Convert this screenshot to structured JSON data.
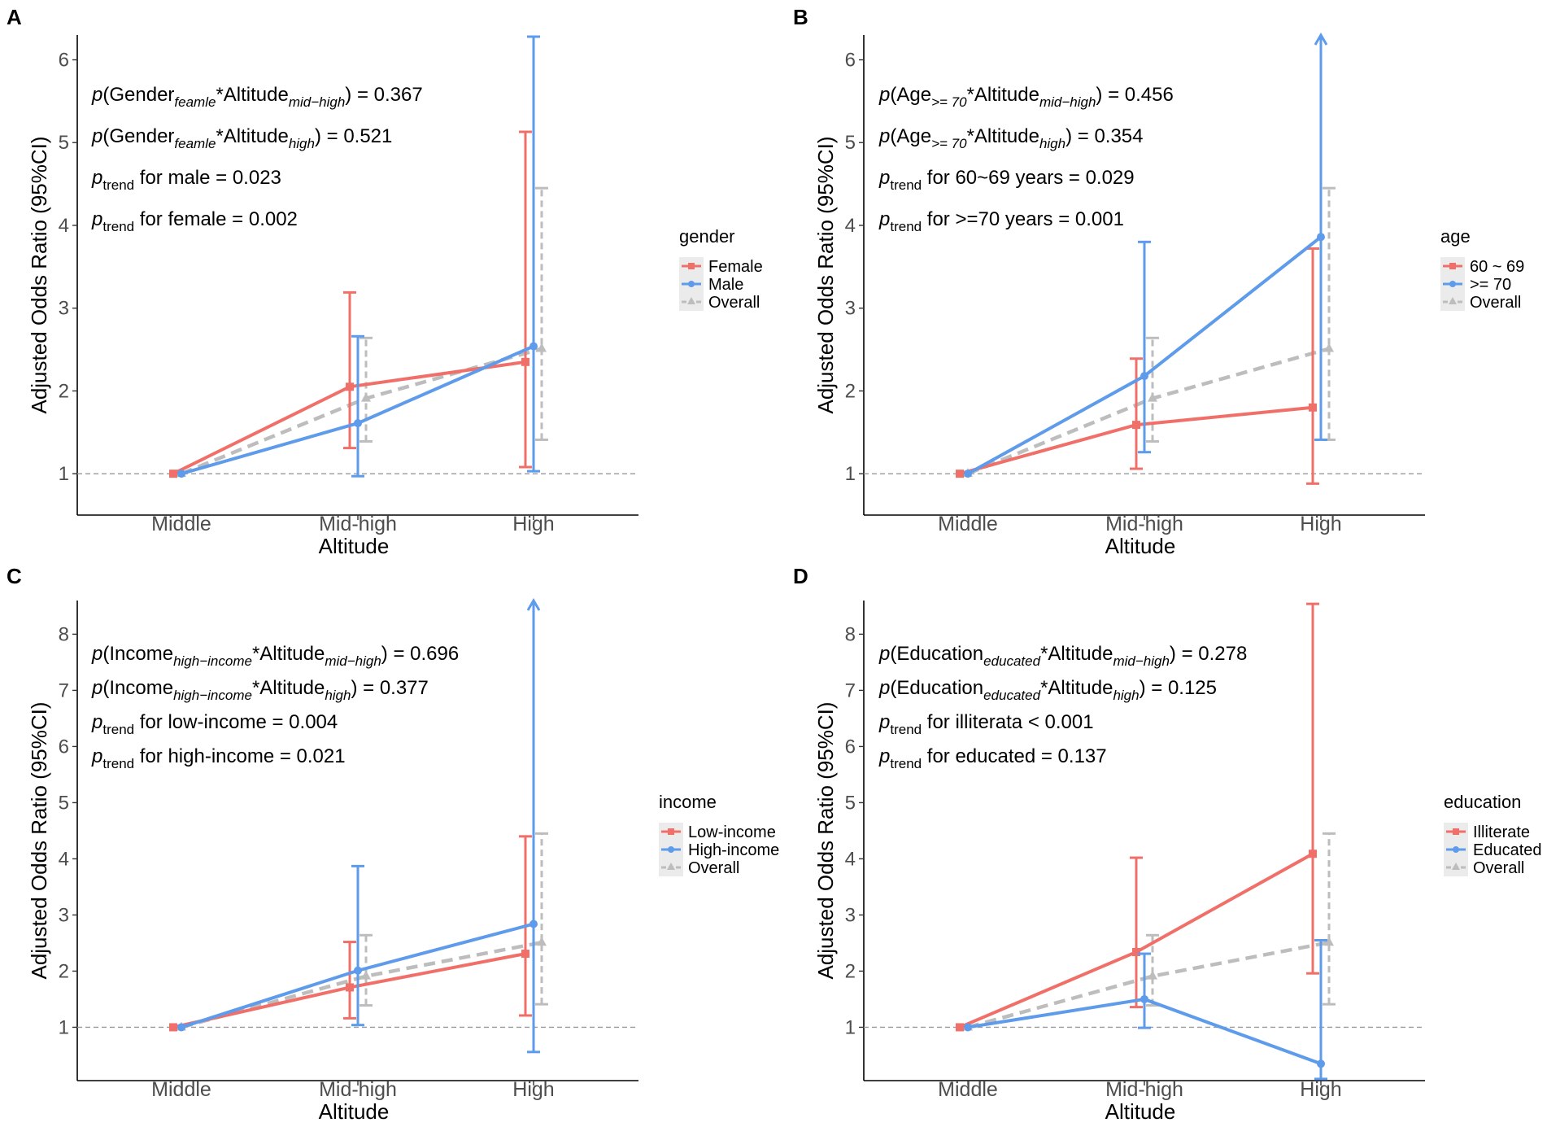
{
  "figure": {
    "shared": {
      "xlabel": "Altitude",
      "ylabel": "Adjusted Odds Ratio (95%CI)",
      "categories": [
        "Middle",
        "Mid-high",
        "High"
      ],
      "reference_line": 1,
      "colors": {
        "red": "#F07069",
        "blue": "#5E9BEB",
        "gray": "#BDBDBD",
        "ref": "#9a9a9a"
      }
    },
    "chart_data": [
      {
        "panel": "A",
        "type": "line",
        "ylim": [
          0.5,
          6.3
        ],
        "yticks": [
          1,
          2,
          3,
          4,
          5,
          6
        ],
        "legend_title": "gender",
        "series": [
          {
            "name": "Female",
            "color_key": "red",
            "marker": "square",
            "values": [
              1,
              2.05,
              2.35
            ],
            "lower": [
              null,
              1.31,
              1.08
            ],
            "upper": [
              null,
              3.19,
              5.13
            ],
            "arrow": [
              false,
              false,
              false
            ]
          },
          {
            "name": "Male",
            "color_key": "blue",
            "marker": "circle",
            "values": [
              1,
              1.61,
              2.54
            ],
            "lower": [
              null,
              0.97,
              1.03
            ],
            "upper": [
              null,
              2.66,
              6.28
            ],
            "arrow": [
              false,
              false,
              false
            ]
          },
          {
            "name": "Overall",
            "color_key": "gray",
            "marker": "triangle",
            "values": [
              1,
              1.91,
              2.51
            ],
            "lower": [
              null,
              1.39,
              1.41
            ],
            "upper": [
              null,
              2.64,
              4.45
            ],
            "arrow": [
              false,
              false,
              false
            ]
          }
        ],
        "annotations": [
          {
            "pre": "p",
            "a": "(Gender",
            "sub1": "feamle",
            "b": "*Altitude",
            "sub2": "mid−high",
            "c": ") = 0.367"
          },
          {
            "pre": "p",
            "a": "(Gender",
            "sub1": "feamle",
            "b": "*Altitude",
            "sub2": "high",
            "c": ") = 0.521"
          },
          {
            "pre": "p",
            "a": "",
            "sub1": "trend",
            "b": " for male = 0.023",
            "sub2": "",
            "c": ""
          },
          {
            "pre": "p",
            "a": "",
            "sub1": "trend",
            "b": " for female = 0.002",
            "sub2": "",
            "c": ""
          }
        ]
      },
      {
        "panel": "B",
        "type": "line",
        "ylim": [
          0.5,
          6.3
        ],
        "yticks": [
          1,
          2,
          3,
          4,
          5,
          6
        ],
        "legend_title": "age",
        "series": [
          {
            "name": "60 ~ 69",
            "color_key": "red",
            "marker": "square",
            "values": [
              1,
              1.59,
              1.8
            ],
            "lower": [
              null,
              1.06,
              0.88
            ],
            "upper": [
              null,
              2.39,
              3.72
            ],
            "arrow": [
              false,
              false,
              false
            ]
          },
          {
            "name": ">= 70",
            "color_key": "blue",
            "marker": "circle",
            "values": [
              1,
              2.18,
              3.86
            ],
            "lower": [
              null,
              1.26,
              1.41
            ],
            "upper": [
              null,
              3.8,
              6.3
            ],
            "arrow": [
              false,
              false,
              true
            ]
          },
          {
            "name": "Overall",
            "color_key": "gray",
            "marker": "triangle",
            "values": [
              1,
              1.91,
              2.51
            ],
            "lower": [
              null,
              1.39,
              1.41
            ],
            "upper": [
              null,
              2.64,
              4.45
            ],
            "arrow": [
              false,
              false,
              false
            ]
          }
        ],
        "annotations": [
          {
            "pre": "p",
            "a": "(Age",
            "sub1": ">= 70",
            "b": "*Altitude",
            "sub2": "mid−high",
            "c": ") = 0.456"
          },
          {
            "pre": "p",
            "a": "(Age",
            "sub1": ">= 70",
            "b": "*Altitude",
            "sub2": "high",
            "c": ") = 0.354"
          },
          {
            "pre": "p",
            "a": "",
            "sub1": "trend",
            "b": " for 60~69 years = 0.029",
            "sub2": "",
            "c": ""
          },
          {
            "pre": "p",
            "a": "",
            "sub1": "trend",
            "b": " for >=70 years = 0.001",
            "sub2": "",
            "c": ""
          }
        ]
      },
      {
        "panel": "C",
        "type": "line",
        "ylim": [
          0.05,
          8.6
        ],
        "yticks": [
          1,
          2,
          3,
          4,
          5,
          6,
          7,
          8
        ],
        "legend_title": "income",
        "series": [
          {
            "name": "Low-income",
            "color_key": "red",
            "marker": "square",
            "values": [
              1,
              1.71,
              2.31
            ],
            "lower": [
              null,
              1.16,
              1.21
            ],
            "upper": [
              null,
              2.52,
              4.4
            ],
            "arrow": [
              false,
              false,
              false
            ]
          },
          {
            "name": "High-income",
            "color_key": "blue",
            "marker": "circle",
            "values": [
              1,
              2.01,
              2.84
            ],
            "lower": [
              null,
              1.04,
              0.56
            ],
            "upper": [
              null,
              3.87,
              8.6
            ],
            "arrow": [
              false,
              false,
              true
            ]
          },
          {
            "name": "Overall",
            "color_key": "gray",
            "marker": "triangle",
            "values": [
              1,
              1.91,
              2.51
            ],
            "lower": [
              null,
              1.39,
              1.41
            ],
            "upper": [
              null,
              2.64,
              4.45
            ],
            "arrow": [
              false,
              false,
              false
            ]
          }
        ],
        "annotations": [
          {
            "pre": "p",
            "a": "(Income",
            "sub1": "high−income",
            "b": "*Altitude",
            "sub2": "mid−high",
            "c": ") = 0.696"
          },
          {
            "pre": "p",
            "a": "(Income",
            "sub1": "high−income",
            "b": "*Altitude",
            "sub2": "high",
            "c": ") = 0.377"
          },
          {
            "pre": "p",
            "a": "",
            "sub1": "trend",
            "b": " for low-income = 0.004",
            "sub2": "",
            "c": ""
          },
          {
            "pre": "p",
            "a": "",
            "sub1": "trend",
            "b": " for high-income = 0.021",
            "sub2": "",
            "c": ""
          }
        ]
      },
      {
        "panel": "D",
        "type": "line",
        "ylim": [
          0.05,
          8.6
        ],
        "yticks": [
          1,
          2,
          3,
          4,
          5,
          6,
          7,
          8
        ],
        "legend_title": "education",
        "series": [
          {
            "name": "Illiterate",
            "color_key": "red",
            "marker": "square",
            "values": [
              1,
              2.34,
              4.09
            ],
            "lower": [
              null,
              1.36,
              1.96
            ],
            "upper": [
              null,
              4.02,
              8.54
            ],
            "arrow": [
              false,
              false,
              false
            ]
          },
          {
            "name": "Educated",
            "color_key": "blue",
            "marker": "circle",
            "values": [
              1,
              1.5,
              0.35
            ],
            "lower": [
              null,
              0.99,
              0.08
            ],
            "upper": [
              null,
              2.31,
              2.55
            ],
            "arrow": [
              false,
              false,
              false
            ]
          },
          {
            "name": "Overall",
            "color_key": "gray",
            "marker": "triangle",
            "values": [
              1,
              1.91,
              2.51
            ],
            "lower": [
              null,
              1.39,
              1.41
            ],
            "upper": [
              null,
              2.64,
              4.45
            ],
            "arrow": [
              false,
              false,
              false
            ]
          }
        ],
        "annotations": [
          {
            "pre": "p",
            "a": "(Education",
            "sub1": "educated",
            "b": "*Altitude",
            "sub2": "mid−high",
            "c": ") = 0.278"
          },
          {
            "pre": "p",
            "a": "(Education",
            "sub1": "educated",
            "b": "*Altitude",
            "sub2": "high",
            "c": ") = 0.125"
          },
          {
            "pre": "p",
            "a": "",
            "sub1": "trend",
            "b": " for illiterata < 0.001",
            "sub2": "",
            "c": ""
          },
          {
            "pre": "p",
            "a": "",
            "sub1": "trend",
            "b": " for educated = 0.137",
            "sub2": "",
            "c": ""
          }
        ]
      }
    ]
  }
}
